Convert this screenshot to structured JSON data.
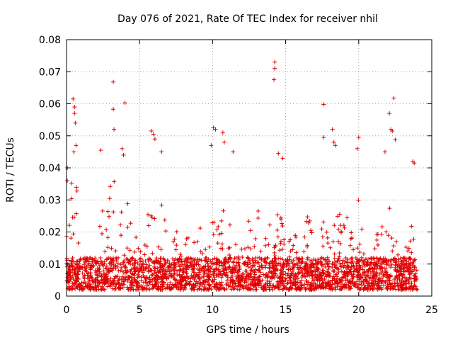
{
  "chart_data": {
    "type": "scatter",
    "title": "Day 076 of 2021, Rate Of TEC Index for receiver nhil",
    "xlabel": "GPS time / hours",
    "ylabel": "ROTI / TECUs",
    "xlim": [
      0,
      25
    ],
    "ylim": [
      0,
      0.08
    ],
    "xticks": [
      0,
      5,
      10,
      15,
      20,
      25
    ],
    "xtick_labels": [
      "0",
      "5",
      "10",
      "15",
      "20",
      "25"
    ],
    "yticks": [
      0,
      0.01,
      0.02,
      0.03,
      0.04,
      0.05,
      0.06,
      0.07,
      0.08
    ],
    "ytick_labels": [
      "0",
      "0.01",
      "0.02",
      "0.03",
      "0.04",
      "0.05",
      "0.06",
      "0.07",
      "0.08"
    ],
    "grid": true,
    "marker": "+",
    "series": [
      {
        "name": "ROTI",
        "color": "#e00000",
        "x_range": [
          0,
          24
        ],
        "dense_band": [
          0.002,
          0.012
        ],
        "bursts": [
          {
            "t": 0.1,
            "amp": 0.04
          },
          {
            "t": 0.5,
            "amp": 0.061
          },
          {
            "t": 1.5,
            "amp": 0.03
          },
          {
            "t": 2.5,
            "amp": 0.045
          },
          {
            "t": 3.2,
            "amp": 0.067
          },
          {
            "t": 4.0,
            "amp": 0.06
          },
          {
            "t": 4.8,
            "amp": 0.03
          },
          {
            "t": 5.8,
            "amp": 0.051
          },
          {
            "t": 6.5,
            "amp": 0.045
          },
          {
            "t": 7.5,
            "amp": 0.033
          },
          {
            "t": 8.5,
            "amp": 0.04
          },
          {
            "t": 9.3,
            "amp": 0.04
          },
          {
            "t": 10.1,
            "amp": 0.052
          },
          {
            "t": 10.7,
            "amp": 0.051
          },
          {
            "t": 11.3,
            "amp": 0.045
          },
          {
            "t": 12.3,
            "amp": 0.042
          },
          {
            "t": 13.1,
            "amp": 0.041
          },
          {
            "t": 14.0,
            "amp": 0.043
          },
          {
            "t": 14.5,
            "amp": 0.045
          },
          {
            "t": 15.5,
            "amp": 0.041
          },
          {
            "t": 16.5,
            "amp": 0.042
          },
          {
            "t": 17.8,
            "amp": 0.05
          },
          {
            "t": 18.5,
            "amp": 0.045
          },
          {
            "t": 19.2,
            "amp": 0.041
          },
          {
            "t": 20.0,
            "amp": 0.049
          },
          {
            "t": 21.5,
            "amp": 0.045
          },
          {
            "t": 22.2,
            "amp": 0.053
          },
          {
            "t": 23.5,
            "amp": 0.042
          }
        ],
        "notable_points": [
          {
            "x": 0.45,
            "y": 0.0615
          },
          {
            "x": 0.55,
            "y": 0.059
          },
          {
            "x": 0.55,
            "y": 0.057
          },
          {
            "x": 0.6,
            "y": 0.054
          },
          {
            "x": 0.65,
            "y": 0.047
          },
          {
            "x": 0.5,
            "y": 0.045
          },
          {
            "x": 0.05,
            "y": 0.04
          },
          {
            "x": 0.05,
            "y": 0.036
          },
          {
            "x": 3.2,
            "y": 0.0668
          },
          {
            "x": 3.2,
            "y": 0.0583
          },
          {
            "x": 3.25,
            "y": 0.052
          },
          {
            "x": 4.0,
            "y": 0.0603
          },
          {
            "x": 3.8,
            "y": 0.046
          },
          {
            "x": 3.9,
            "y": 0.044
          },
          {
            "x": 5.8,
            "y": 0.0515
          },
          {
            "x": 5.95,
            "y": 0.0505
          },
          {
            "x": 6.05,
            "y": 0.049
          },
          {
            "x": 6.5,
            "y": 0.045
          },
          {
            "x": 2.35,
            "y": 0.0455
          },
          {
            "x": 10.05,
            "y": 0.0525
          },
          {
            "x": 10.2,
            "y": 0.052
          },
          {
            "x": 10.7,
            "y": 0.051
          },
          {
            "x": 10.8,
            "y": 0.048
          },
          {
            "x": 9.9,
            "y": 0.047
          },
          {
            "x": 11.4,
            "y": 0.045
          },
          {
            "x": 14.25,
            "y": 0.073
          },
          {
            "x": 14.25,
            "y": 0.071
          },
          {
            "x": 14.2,
            "y": 0.0675
          },
          {
            "x": 14.5,
            "y": 0.0445
          },
          {
            "x": 14.8,
            "y": 0.043
          },
          {
            "x": 17.6,
            "y": 0.0598
          },
          {
            "x": 17.6,
            "y": 0.0495
          },
          {
            "x": 18.2,
            "y": 0.052
          },
          {
            "x": 18.3,
            "y": 0.048
          },
          {
            "x": 18.4,
            "y": 0.047
          },
          {
            "x": 20.0,
            "y": 0.0495
          },
          {
            "x": 19.9,
            "y": 0.046
          },
          {
            "x": 21.8,
            "y": 0.045
          },
          {
            "x": 22.1,
            "y": 0.057
          },
          {
            "x": 22.2,
            "y": 0.052
          },
          {
            "x": 22.3,
            "y": 0.0515
          },
          {
            "x": 22.4,
            "y": 0.0618
          },
          {
            "x": 22.5,
            "y": 0.0488
          },
          {
            "x": 23.7,
            "y": 0.042
          },
          {
            "x": 23.8,
            "y": 0.0415
          }
        ]
      }
    ]
  }
}
